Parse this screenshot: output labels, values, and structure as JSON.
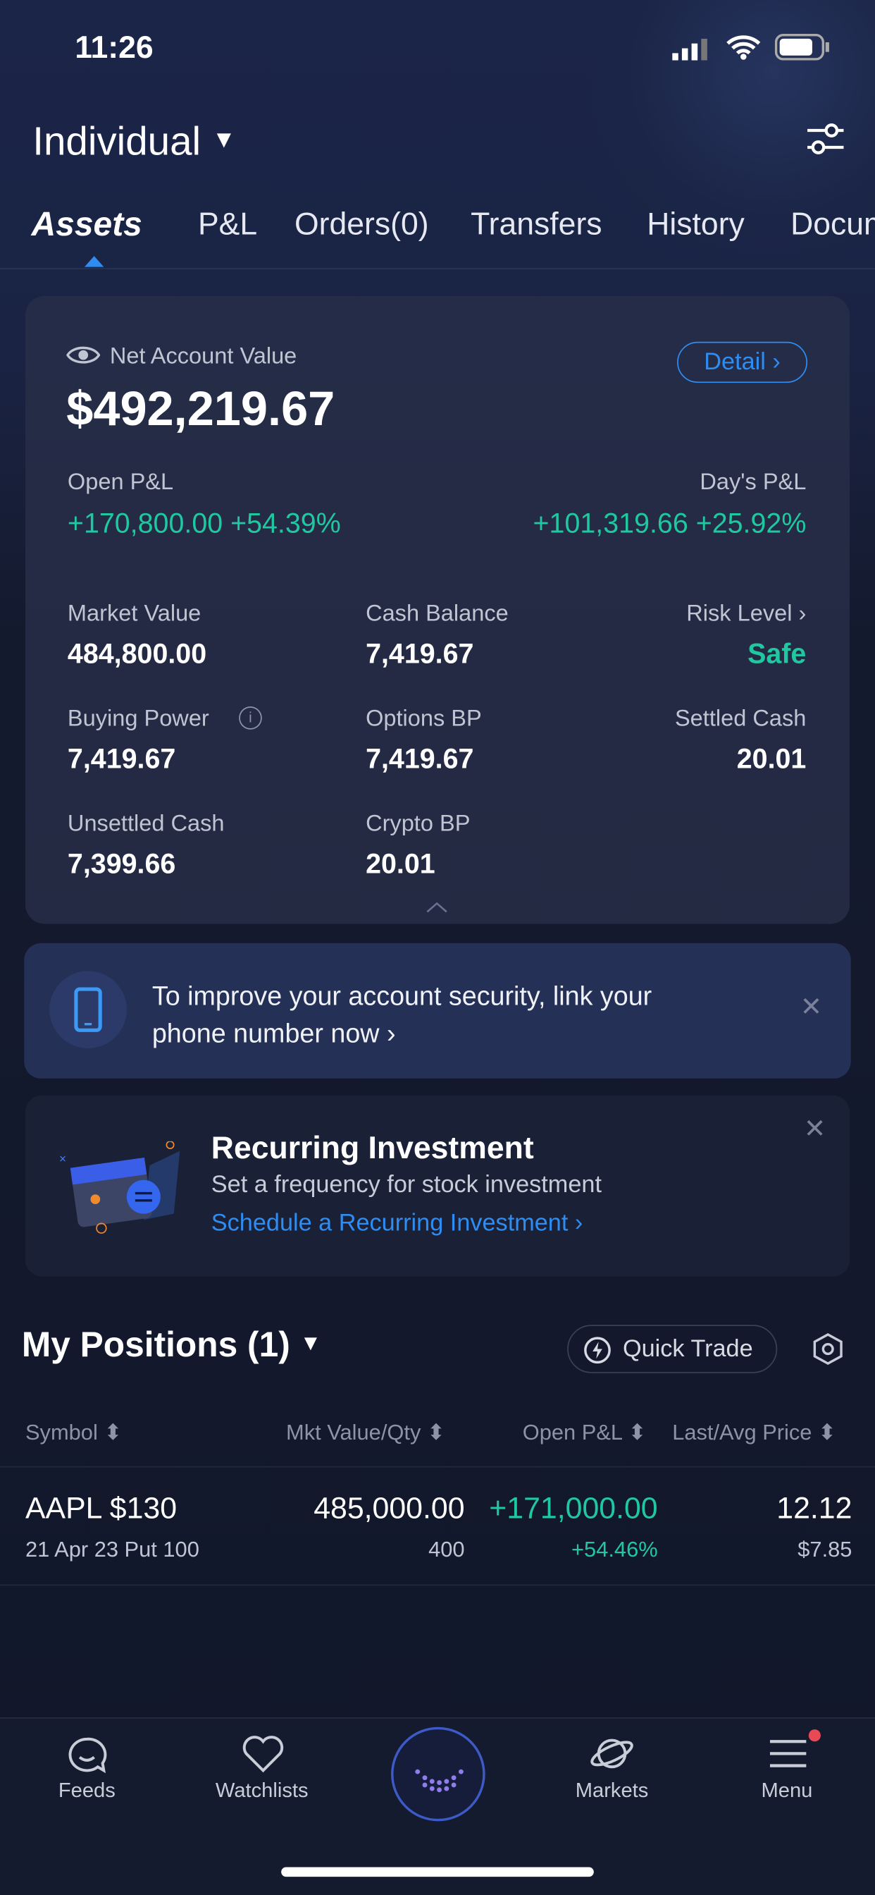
{
  "status": {
    "time": "11:26"
  },
  "header": {
    "account": "Individual",
    "filter_icon": "sliders-icon"
  },
  "tabs": [
    "Assets",
    "P&L",
    "Orders(0)",
    "Transfers",
    "History",
    "Documents"
  ],
  "account_card": {
    "net_label": "Net Account Value",
    "net_value": "$492,219.67",
    "detail": "Detail",
    "open_pl_label": "Open P&L",
    "open_pl": "+170,800.00 +54.39%",
    "day_pl_label": "Day's P&L",
    "day_pl": "+101,319.66 +25.92%",
    "fields": [
      {
        "label": "Market Value",
        "value": "484,800.00"
      },
      {
        "label": "Cash Balance",
        "value": "7,419.67"
      },
      {
        "label": "Risk Level",
        "value": "Safe"
      },
      {
        "label": "Buying Power",
        "value": "7,419.67"
      },
      {
        "label": "Options BP",
        "value": "7,419.67"
      },
      {
        "label": "Settled Cash",
        "value": "20.01"
      },
      {
        "label": "Unsettled Cash",
        "value": "7,399.66"
      },
      {
        "label": "Crypto BP",
        "value": "20.01"
      }
    ]
  },
  "security_banner": {
    "line1": "To improve your account security, link your",
    "line2": "phone number now"
  },
  "recurring": {
    "title": "Recurring Investment",
    "subtitle": "Set a frequency for stock investment",
    "link": "Schedule a Recurring Investment"
  },
  "positions": {
    "title": "My Positions (1)",
    "quick_trade": "Quick Trade",
    "columns": [
      "Symbol",
      "Mkt Value/Qty",
      "Open P&L",
      "Last/Avg Price"
    ],
    "rows": [
      {
        "symbol": "AAPL $130",
        "detail": "21 Apr 23  Put 100",
        "mkt_value": "485,000.00",
        "qty": "400",
        "open_pl": "+171,000.00",
        "open_pl_pct": "+54.46%",
        "last": "12.12",
        "avg": "$7.85"
      }
    ]
  },
  "nav": [
    "Feeds",
    "Watchlists",
    "Markets",
    "Menu"
  ],
  "colors": {
    "positive": "#1fc8a0",
    "link": "#2f8cf0",
    "background": "#12172a"
  }
}
